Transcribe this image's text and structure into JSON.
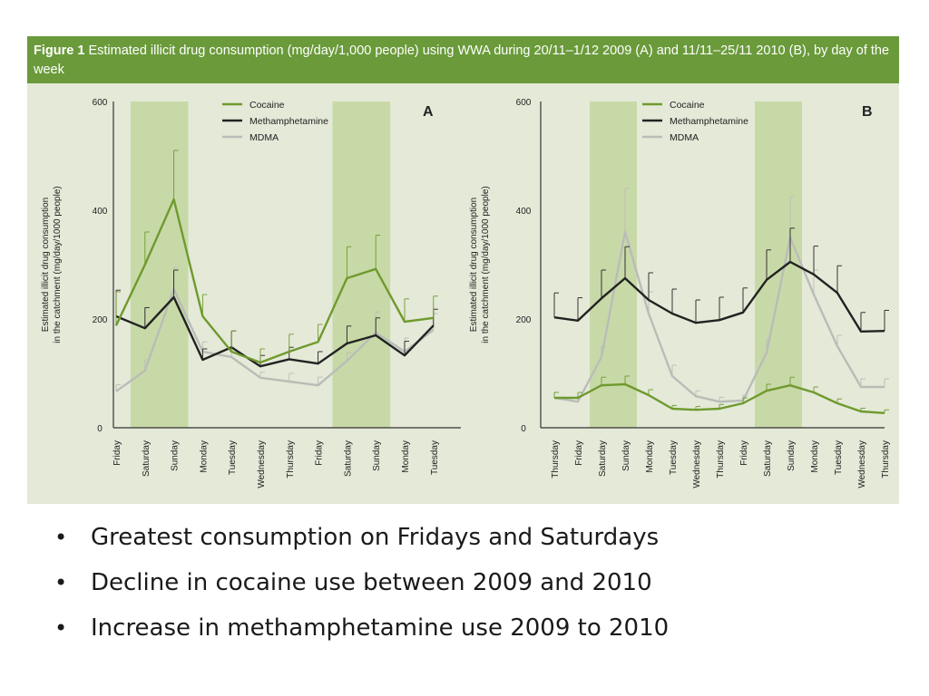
{
  "figure": {
    "label": "Figure 1",
    "caption": "Estimated illicit drug consumption (mg/day/1,000 people) using WWA during 20/11–1/12 2009 (A) and 11/11–25/11 2010 (B), by day of the week",
    "colors": {
      "header": "#6a9a3a",
      "background": "#e4e9d8",
      "weekend_band": "#c8d9a8",
      "cocaine": "#6f9a2e",
      "methamphetamine": "#222222",
      "mdma": "#b9bdb7"
    }
  },
  "chart_data": [
    {
      "type": "line",
      "panel_label": "A",
      "ylabel": "Estimated illicit drug consumption in the catchment (mg/day/1000 people)",
      "ylim": [
        0,
        600
      ],
      "yticks": [
        0,
        200,
        400,
        600
      ],
      "categories": [
        "Friday",
        "Saturday",
        "Sunday",
        "Monday",
        "Tuesday",
        "Wednesday",
        "Thursday",
        "Friday",
        "Saturday",
        "Sunday",
        "Monday",
        "Tuesday"
      ],
      "weekend_bands": [
        [
          1,
          2
        ],
        [
          8,
          9
        ]
      ],
      "series": [
        {
          "name": "Cocaine",
          "values": [
            188,
            300,
            420,
            205,
            140,
            120,
            140,
            158,
            275,
            292,
            195,
            202
          ],
          "errors": [
            62,
            60,
            90,
            40,
            38,
            25,
            32,
            32,
            58,
            62,
            42,
            40
          ]
        },
        {
          "name": "Methamphetamine",
          "values": [
            205,
            183,
            240,
            125,
            148,
            113,
            126,
            118,
            155,
            170,
            133,
            188
          ],
          "errors": [
            48,
            38,
            50,
            20,
            30,
            20,
            22,
            22,
            32,
            32,
            26,
            30
          ]
        },
        {
          "name": "MDMA",
          "values": [
            67,
            105,
            255,
            140,
            130,
            92,
            85,
            78,
            123,
            175,
            140,
            180
          ],
          "errors": [
            12,
            20,
            40,
            18,
            15,
            10,
            15,
            15,
            15,
            38,
            25,
            30
          ]
        }
      ]
    },
    {
      "type": "line",
      "panel_label": "B",
      "ylabel": "Estimated illicit drug consumption in the catchment (mg/day/1000 people)",
      "ylim": [
        0,
        600
      ],
      "yticks": [
        0,
        200,
        400,
        600
      ],
      "categories": [
        "Thursday",
        "Friday",
        "Saturday",
        "Sunday",
        "Monday",
        "Tuesday",
        "Wednesday",
        "Thursday",
        "Friday",
        "Saturday",
        "Sunday",
        "Monday",
        "Tuesday",
        "Wednesday",
        "Thursday"
      ],
      "weekend_bands": [
        [
          2,
          3
        ],
        [
          9,
          10
        ]
      ],
      "series": [
        {
          "name": "Cocaine",
          "values": [
            55,
            55,
            78,
            80,
            60,
            35,
            33,
            35,
            45,
            68,
            78,
            65,
            45,
            30,
            27
          ],
          "errors": [
            10,
            10,
            15,
            15,
            10,
            6,
            6,
            8,
            10,
            12,
            15,
            10,
            8,
            6,
            6
          ]
        },
        {
          "name": "Methamphetamine",
          "values": [
            203,
            197,
            238,
            275,
            235,
            210,
            193,
            198,
            212,
            272,
            305,
            282,
            248,
            177,
            178
          ],
          "errors": [
            45,
            42,
            52,
            58,
            50,
            45,
            42,
            42,
            45,
            55,
            62,
            52,
            50,
            35,
            38
          ]
        },
        {
          "name": "MDMA",
          "values": [
            55,
            48,
            130,
            360,
            210,
            95,
            58,
            48,
            50,
            138,
            350,
            245,
            150,
            75,
            75
          ],
          "errors": [
            10,
            10,
            20,
            80,
            40,
            20,
            10,
            8,
            10,
            25,
            75,
            45,
            20,
            15,
            15
          ]
        }
      ]
    }
  ],
  "bullets": [
    "Greatest consumption on Fridays and Saturdays",
    "Decline in cocaine use between 2009 and 2010",
    "Increase in methamphetamine use 2009 to 2010"
  ]
}
